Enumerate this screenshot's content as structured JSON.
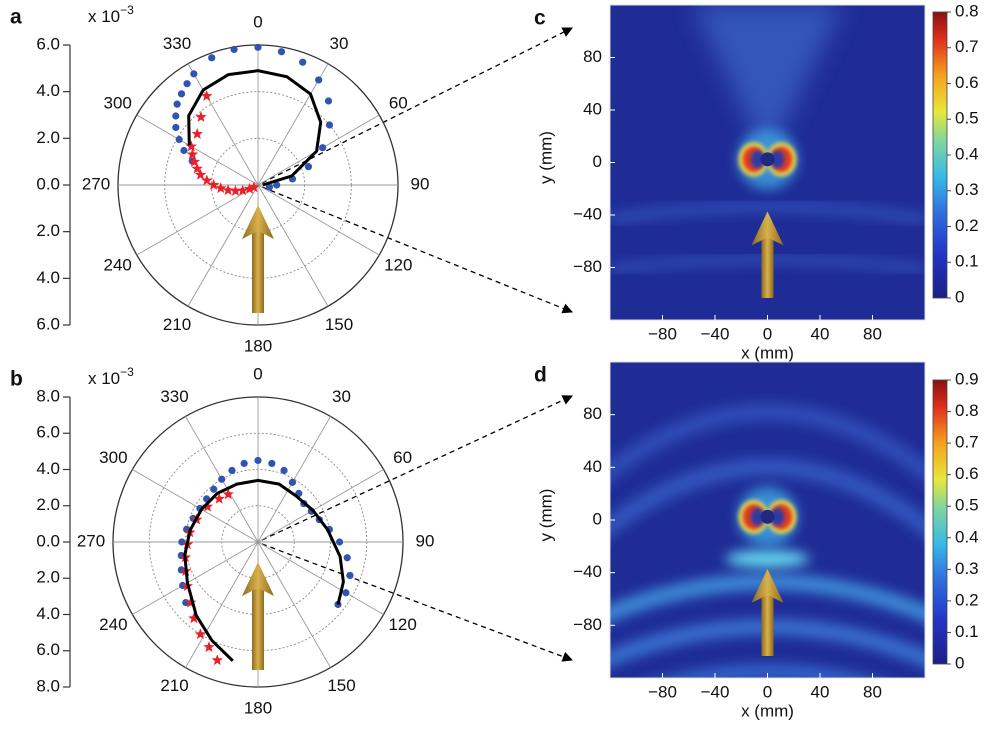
{
  "chart_data": [
    {
      "type": "polar",
      "panel_label": "a",
      "unit": "x 10",
      "unit_exp": "−3",
      "ylim": [
        -6,
        6
      ],
      "yticks": [
        {
          "value": 6,
          "label": "6.0"
        },
        {
          "value": 4,
          "label": "4.0"
        },
        {
          "value": 2,
          "label": "2.0"
        },
        {
          "value": 0,
          "label": "0.0"
        },
        {
          "value": -2,
          "label": "2.0"
        },
        {
          "value": -4,
          "label": "4.0"
        },
        {
          "value": -6,
          "label": "6.0"
        }
      ],
      "thetaticks": [
        0,
        30,
        60,
        90,
        120,
        150,
        180,
        210,
        240,
        270,
        300,
        330
      ],
      "series": [
        {
          "color": "#2f55b0",
          "marker": "circle",
          "theta": [
            290,
            295,
            300,
            305,
            310,
            315,
            320,
            325,
            330,
            340,
            350,
            0,
            10,
            20,
            30,
            40,
            50,
            60,
            70,
            80,
            90,
            100
          ],
          "values": [
            3.0,
            3.5,
            3.9,
            4.3,
            4.6,
            4.9,
            5.1,
            5.3,
            5.5,
            5.8,
            5.9,
            5.9,
            5.8,
            5.6,
            5.2,
            4.7,
            4.0,
            3.2,
            2.3,
            1.5,
            0.8,
            0.5
          ]
        },
        {
          "color": "#e8202a",
          "marker": "star",
          "theta": [
            330,
            320,
            310,
            300,
            295,
            290,
            285,
            280,
            275,
            270,
            265,
            260,
            255,
            250,
            245,
            240
          ],
          "values": [
            4.4,
            3.8,
            3.4,
            3.3,
            3.1,
            2.9,
            2.7,
            2.5,
            2.2,
            1.9,
            1.6,
            1.3,
            1.0,
            0.7,
            0.4,
            0.2
          ]
        },
        {
          "color": "#000000",
          "marker": "line",
          "theta": [
            300,
            315,
            330,
            345,
            0,
            15,
            30,
            45,
            60,
            75,
            90
          ],
          "values": [
            3.4,
            4.2,
            4.7,
            4.9,
            4.9,
            4.8,
            4.5,
            3.8,
            2.9,
            1.5,
            0.2
          ]
        }
      ]
    },
    {
      "type": "polar",
      "panel_label": "b",
      "unit": "x 10",
      "unit_exp": "−3",
      "ylim": [
        -8,
        8
      ],
      "yticks": [
        {
          "value": 8,
          "label": "8.0"
        },
        {
          "value": 6,
          "label": "6.0"
        },
        {
          "value": 4,
          "label": "4.0"
        },
        {
          "value": 2,
          "label": "2.0"
        },
        {
          "value": 0,
          "label": "0.0"
        },
        {
          "value": -2,
          "label": "2.0"
        },
        {
          "value": -4,
          "label": "4.0"
        },
        {
          "value": -6,
          "label": "6.0"
        },
        {
          "value": -8,
          "label": "8.0"
        }
      ],
      "thetaticks": [
        0,
        30,
        60,
        90,
        120,
        150,
        180,
        210,
        240,
        270,
        300,
        330
      ],
      "series": [
        {
          "color": "#2f55b0",
          "marker": "circle",
          "theta": [
            230,
            240,
            250,
            260,
            270,
            280,
            290,
            300,
            310,
            320,
            330,
            340,
            350,
            0,
            10,
            20,
            30,
            40,
            50,
            60,
            70,
            80,
            90,
            100,
            110,
            120,
            128
          ],
          "values": [
            5.2,
            4.8,
            4.5,
            4.3,
            4.2,
            4.0,
            3.8,
            3.7,
            3.7,
            3.8,
            4.0,
            4.2,
            4.4,
            4.5,
            4.4,
            4.2,
            3.8,
            3.5,
            3.3,
            3.4,
            3.6,
            4.0,
            4.5,
            5.0,
            5.4,
            5.6,
            5.6
          ]
        },
        {
          "color": "#e8202a",
          "marker": "star",
          "theta": [
            199,
            205,
            212,
            220,
            228,
            238,
            248,
            258,
            268,
            278,
            290,
            305,
            318,
            328
          ],
          "values": [
            6.9,
            6.4,
            6.0,
            5.5,
            5.0,
            4.6,
            4.3,
            4.1,
            3.9,
            3.8,
            3.6,
            3.4,
            3.2,
            3.1
          ]
        },
        {
          "color": "#000000",
          "marker": "line",
          "theta": [
            192,
            205,
            220,
            240,
            260,
            280,
            300,
            320,
            340,
            0,
            20,
            40,
            60,
            80,
            100,
            115,
            128
          ],
          "values": [
            6.7,
            6.0,
            5.3,
            4.5,
            4.1,
            3.8,
            3.6,
            3.5,
            3.4,
            3.4,
            3.4,
            3.3,
            3.5,
            3.9,
            4.6,
            5.2,
            5.6
          ]
        }
      ]
    },
    {
      "type": "heatmap",
      "panel_label": "c",
      "xlabel": "x (mm)",
      "ylabel": "y (mm)",
      "xlim": [
        -120,
        120
      ],
      "ylim": [
        -120,
        120
      ],
      "xticks": [
        {
          "value": -80,
          "label": "−80"
        },
        {
          "value": -40,
          "label": "−40"
        },
        0,
        40,
        80
      ],
      "yticks": [
        {
          "value": -80,
          "label": "−80"
        },
        {
          "value": -40,
          "label": "−40"
        },
        0,
        40,
        80
      ],
      "clim": [
        0,
        0.8
      ],
      "cticks": [
        0,
        0.1,
        0.2,
        0.3,
        0.4,
        0.5,
        0.6,
        0.7,
        0.8
      ]
    },
    {
      "type": "heatmap",
      "panel_label": "d",
      "xlabel": "x (mm)",
      "ylabel": "y (mm)",
      "xlim": [
        -120,
        120
      ],
      "ylim": [
        -120,
        120
      ],
      "xticks": [
        {
          "value": -80,
          "label": "−80"
        },
        {
          "value": -40,
          "label": "−40"
        },
        0,
        40,
        80
      ],
      "yticks": [
        {
          "value": -80,
          "label": "−80"
        },
        {
          "value": -40,
          "label": "−40"
        },
        0,
        40,
        80
      ],
      "clim": [
        0,
        0.9
      ],
      "cticks": [
        0,
        0.1,
        0.2,
        0.3,
        0.4,
        0.5,
        0.6,
        0.7,
        0.8,
        0.9
      ]
    }
  ]
}
